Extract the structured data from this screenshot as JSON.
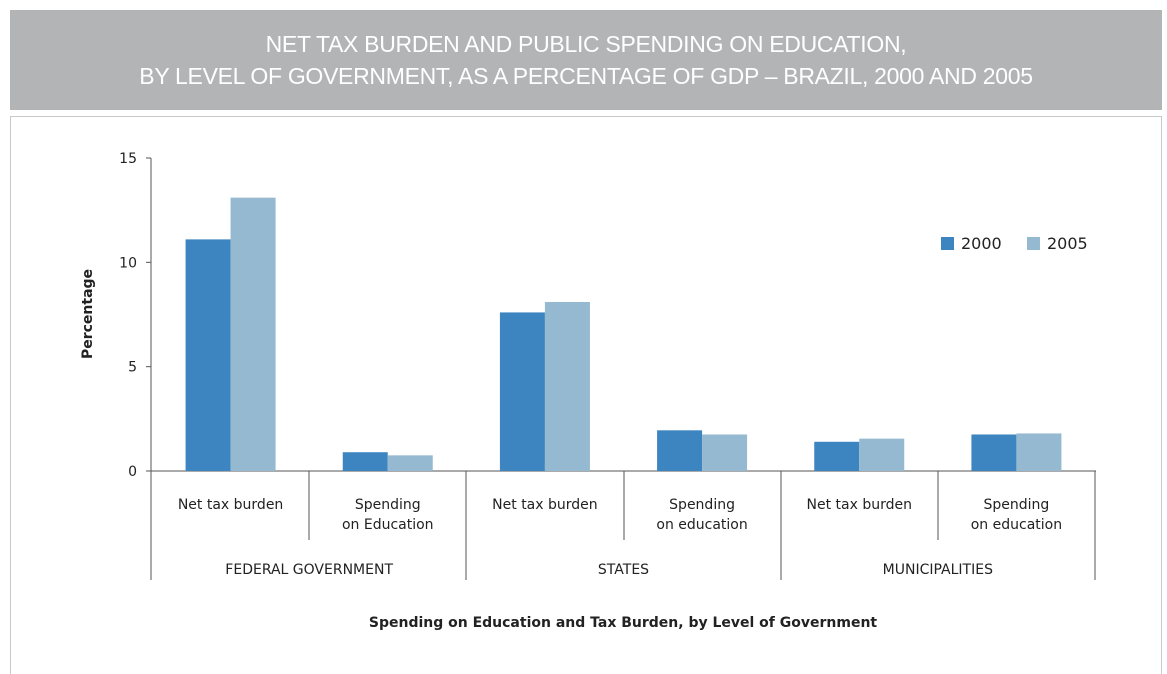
{
  "title_lines": [
    "NET TAX BURDEN AND PUBLIC SPENDING ON EDUCATION,",
    "BY LEVEL OF GOVERNMENT, AS A PERCENTAGE OF GDP – BRAZIL, 2000 AND 2005"
  ],
  "colors": {
    "s2000": "#3c85c0",
    "s2005": "#94b9d0",
    "banner": "#b3b4b6"
  },
  "chart_data": {
    "type": "bar",
    "title": "NET TAX BURDEN AND PUBLIC SPENDING ON EDUCATION, BY LEVEL OF GOVERNMENT, AS A PERCENTAGE OF GDP – BRAZIL, 2000 AND 2005",
    "xlabel": "Spending on Education and Tax Burden, by Level of Government",
    "ylabel": "Percentage",
    "ylim": [
      0,
      15
    ],
    "yticks": [
      0,
      5,
      10,
      15
    ],
    "legend_position": "top-right",
    "groups": [
      "FEDERAL GOVERNMENT",
      "STATES",
      "MUNICIPALITIES"
    ],
    "categories": [
      "Net tax burden",
      "Spending\non Education",
      "Net tax burden",
      "Spending\non education",
      "Net tax burden",
      "Spending\non education"
    ],
    "series": [
      {
        "name": "2000",
        "values": [
          11.1,
          0.9,
          7.6,
          1.95,
          1.4,
          1.75
        ]
      },
      {
        "name": "2005",
        "values": [
          13.1,
          0.75,
          8.1,
          1.75,
          1.55,
          1.8
        ]
      }
    ]
  }
}
